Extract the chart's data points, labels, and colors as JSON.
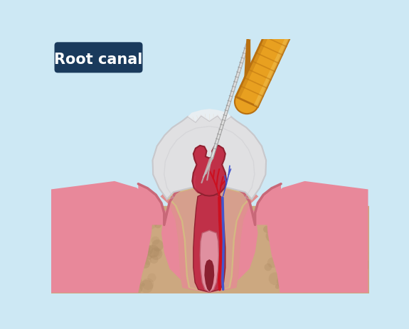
{
  "bg_color": "#cde8f4",
  "title_text": "Root canal",
  "title_bg": "#1a3a5c",
  "title_fg": "#ffffff",
  "enamel_color": "#e0e0e2",
  "enamel_shadow": "#c8c8cc",
  "enamel_highlight": "#f0f0f2",
  "dentin_color": "#d4b882",
  "dentin_dark": "#b89860",
  "pulp_color": "#c03048",
  "pulp_dark": "#902030",
  "pulp_light": "#d04060",
  "gum_color": "#e8889a",
  "gum_dark": "#c86878",
  "gum_light": "#f0a0b0",
  "bone_color": "#cca880",
  "bone_dark": "#aa8860",
  "pdl_color": "#e09090",
  "nerve_red": "#cc1020",
  "nerve_blue": "#4455cc",
  "tool_handle_color": "#e8a020",
  "tool_handle_dark": "#b87010",
  "tool_handle_light": "#f0c050",
  "tool_shaft_color": "#c0c0c0",
  "tool_shaft_dark": "#808080",
  "extracted_gray": "#b8b8b8"
}
